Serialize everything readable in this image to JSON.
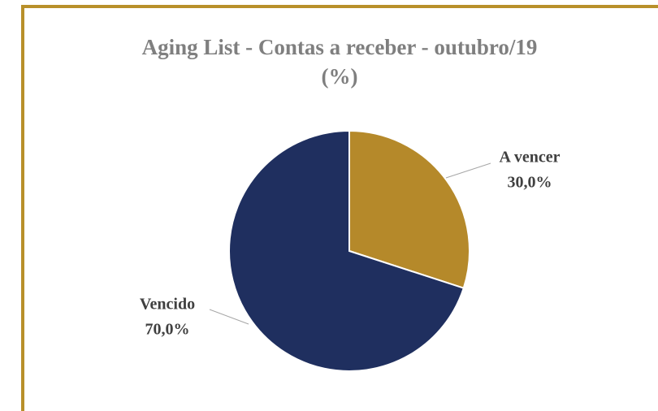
{
  "chart_data": {
    "type": "pie",
    "title": "Aging List - Contas a receber - outubro/19\n(%)",
    "categories": [
      "A vencer",
      "Vencido"
    ],
    "values": [
      30,
      70
    ],
    "value_labels": [
      "30,0%",
      "70,0%"
    ],
    "colors": [
      "#b5892a",
      "#1f2f5f"
    ]
  }
}
